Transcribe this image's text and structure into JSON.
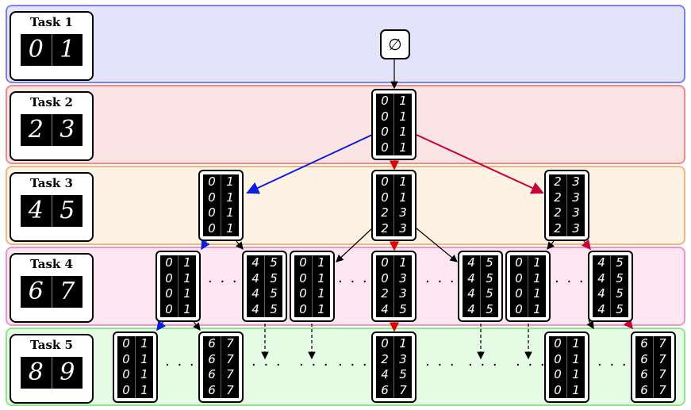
{
  "tasks": [
    {
      "label": "Task 1",
      "digits": [
        "0",
        "1"
      ]
    },
    {
      "label": "Task 2",
      "digits": [
        "2",
        "3"
      ]
    },
    {
      "label": "Task 3",
      "digits": [
        "4",
        "5"
      ]
    },
    {
      "label": "Task 4",
      "digits": [
        "6",
        "7"
      ]
    },
    {
      "label": "Task 5",
      "digits": [
        "8",
        "9"
      ]
    }
  ],
  "root_symbol": "∅",
  "ellipsis": "· · ·",
  "colors": {
    "band1": "#e3e4fb",
    "band1_border": "#7b7ff0",
    "band2": "#fce4e4",
    "band2_border": "#f08a8a",
    "band3": "#fdf2e4",
    "band3_border": "#f3b77e",
    "band4": "#fbe6f1",
    "band4_border": "#ee95c6",
    "band5": "#e5fbe3",
    "band5_border": "#8fe58a",
    "blue_arrow": "#0a1de0",
    "red_arrow": "#c8003a"
  },
  "nodes": {
    "t2": [
      [
        "0",
        "1"
      ],
      [
        "0",
        "1"
      ],
      [
        "0",
        "1"
      ],
      [
        "0",
        "1"
      ]
    ],
    "t3_left": [
      [
        "0",
        "1"
      ],
      [
        "0",
        "1"
      ],
      [
        "0",
        "1"
      ],
      [
        "0",
        "1"
      ]
    ],
    "t3_mid": [
      [
        "0",
        "1"
      ],
      [
        "0",
        "1"
      ],
      [
        "2",
        "3"
      ],
      [
        "2",
        "3"
      ]
    ],
    "t3_right": [
      [
        "2",
        "3"
      ],
      [
        "2",
        "3"
      ],
      [
        "2",
        "3"
      ],
      [
        "2",
        "3"
      ]
    ],
    "t4_a": [
      [
        "0",
        "1"
      ],
      [
        "0",
        "1"
      ],
      [
        "0",
        "1"
      ],
      [
        "0",
        "1"
      ]
    ],
    "t4_b": [
      [
        "4",
        "5"
      ],
      [
        "4",
        "5"
      ],
      [
        "4",
        "5"
      ],
      [
        "4",
        "5"
      ]
    ],
    "t4_c": [
      [
        "0",
        "1"
      ],
      [
        "0",
        "1"
      ],
      [
        "0",
        "1"
      ],
      [
        "0",
        "1"
      ]
    ],
    "t4_d": [
      [
        "0",
        "1"
      ],
      [
        "0",
        "3"
      ],
      [
        "2",
        "3"
      ],
      [
        "4",
        "5"
      ]
    ],
    "t4_e": [
      [
        "4",
        "5"
      ],
      [
        "4",
        "5"
      ],
      [
        "4",
        "5"
      ],
      [
        "4",
        "5"
      ]
    ],
    "t4_f": [
      [
        "0",
        "1"
      ],
      [
        "0",
        "1"
      ],
      [
        "0",
        "1"
      ],
      [
        "0",
        "1"
      ]
    ],
    "t4_g": [
      [
        "4",
        "5"
      ],
      [
        "4",
        "5"
      ],
      [
        "4",
        "5"
      ],
      [
        "4",
        "5"
      ]
    ],
    "t5_a": [
      [
        "0",
        "1"
      ],
      [
        "0",
        "1"
      ],
      [
        "0",
        "1"
      ],
      [
        "0",
        "1"
      ]
    ],
    "t5_b": [
      [
        "6",
        "7"
      ],
      [
        "6",
        "7"
      ],
      [
        "6",
        "7"
      ],
      [
        "6",
        "7"
      ]
    ],
    "t5_mid": [
      [
        "0",
        "1"
      ],
      [
        "2",
        "3"
      ],
      [
        "4",
        "5"
      ],
      [
        "6",
        "7"
      ]
    ],
    "t5_c": [
      [
        "0",
        "1"
      ],
      [
        "0",
        "1"
      ],
      [
        "0",
        "1"
      ],
      [
        "0",
        "1"
      ]
    ],
    "t5_d": [
      [
        "6",
        "7"
      ],
      [
        "6",
        "7"
      ],
      [
        "6",
        "7"
      ],
      [
        "6",
        "7"
      ]
    ]
  }
}
